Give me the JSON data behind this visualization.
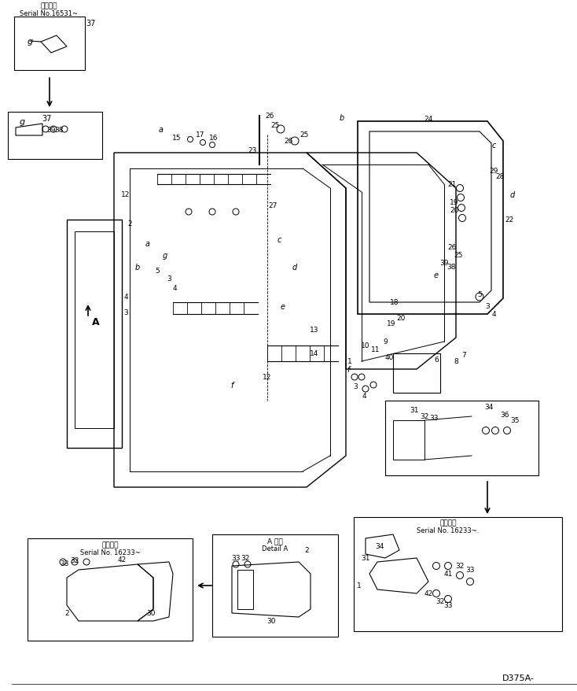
{
  "title": "",
  "background_color": "#ffffff",
  "line_color": "#000000",
  "text_color": "#000000",
  "model_text": "D375A-",
  "top_left_label1": "適用号码",
  "top_left_label2": "Serial No.16531~",
  "bottom_left_label1": "適用号码",
  "bottom_left_label2": "Serial No. 16233~",
  "bottom_center_label1": "A 详图",
  "bottom_center_label2": "Detail A",
  "bottom_right_label1": "适用号码",
  "bottom_right_label2": "Serial No. 16233~."
}
